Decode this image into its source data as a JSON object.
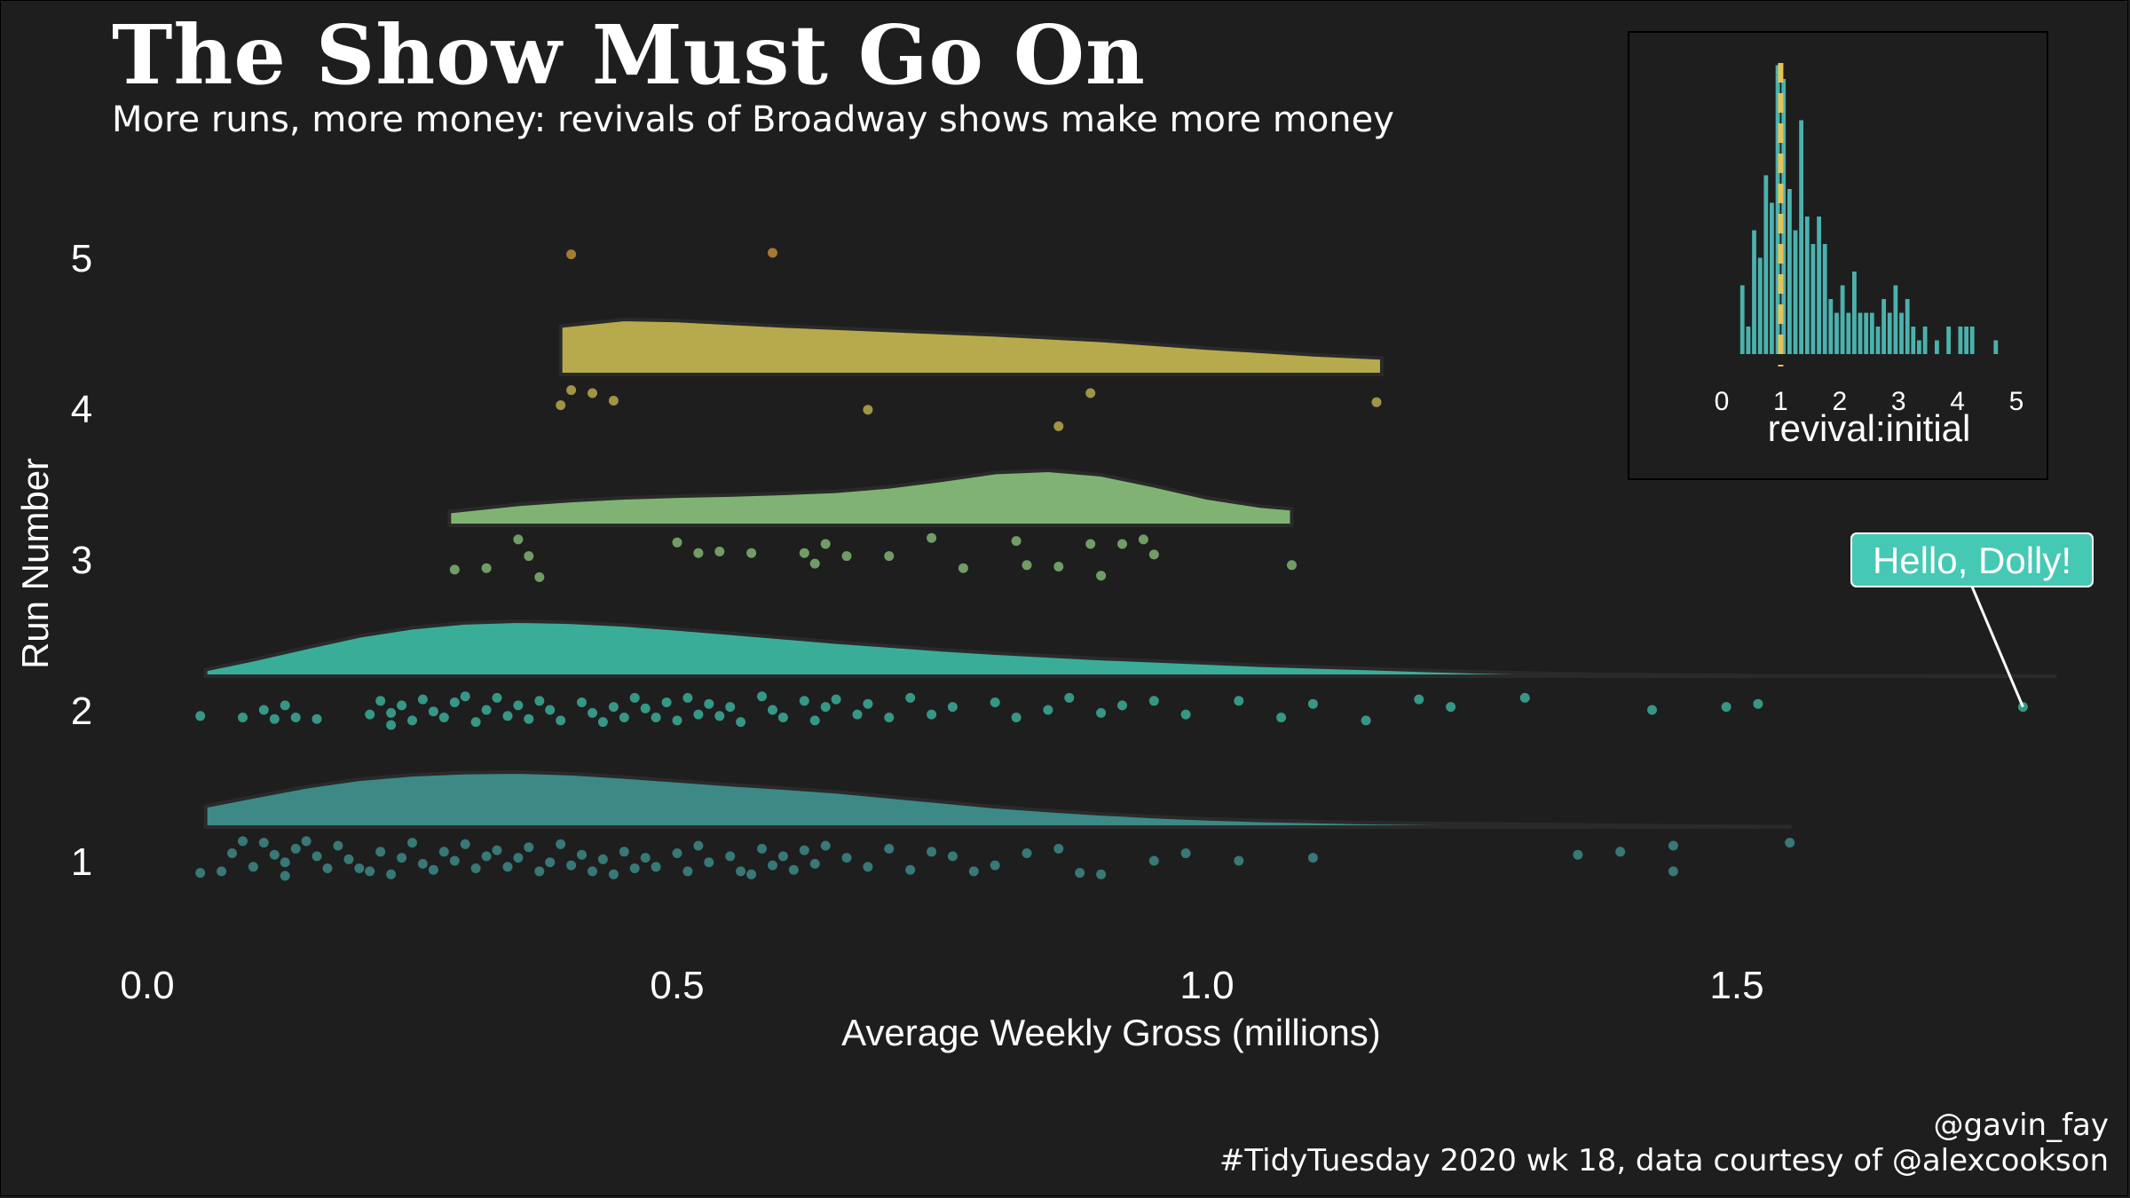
{
  "header": {
    "title": "The Show Must Go On",
    "subtitle": "More runs, more money: revivals of Broadway shows make more money"
  },
  "captions": {
    "handle": "@gavin_fay",
    "source": "#TidyTuesday 2020 wk 18, data courtesy of @alexcookson"
  },
  "colors": {
    "background": "#1e1e1e",
    "run1": "#3f8f8c",
    "run2": "#3cb5a0",
    "run3": "#86bc78",
    "run4": "#c0b24f",
    "run5": "#c8903a",
    "inset_bars": "#4bb1ad",
    "inset_line": "#e3c45a",
    "label_fill": "#45c9b4"
  },
  "chart_data": [
    {
      "type": "raincloud",
      "xlabel": "Average Weekly Gross (millions)",
      "ylabel": "Run Number",
      "xlim": [
        0,
        1.8
      ],
      "xticks": [
        0.0,
        0.5,
        1.0,
        1.5
      ],
      "xtick_labels": [
        "0.0",
        "0.5",
        "1.0",
        "1.5"
      ],
      "ylim": [
        0.5,
        5.5
      ],
      "yticks": [
        1,
        2,
        3,
        4,
        5
      ],
      "grid": false,
      "series": [
        {
          "run": 1,
          "density": {
            "x": [
              0.055,
              0.1,
              0.15,
              0.2,
              0.25,
              0.3,
              0.35,
              0.4,
              0.45,
              0.5,
              0.55,
              0.6,
              0.65,
              0.7,
              0.75,
              0.8,
              0.85,
              0.9,
              0.95,
              1.0,
              1.05,
              1.1,
              1.15,
              1.2,
              1.25,
              1.3,
              1.35,
              1.4,
              1.45,
              1.5,
              1.55
            ],
            "y": [
              0.38,
              0.55,
              0.73,
              0.87,
              0.95,
              0.99,
              1.0,
              0.97,
              0.91,
              0.84,
              0.77,
              0.71,
              0.64,
              0.55,
              0.46,
              0.37,
              0.3,
              0.24,
              0.19,
              0.15,
              0.12,
              0.1,
              0.08,
              0.07,
              0.06,
              0.05,
              0.04,
              0.03,
              0.02,
              0.015,
              0.01
            ]
          },
          "points": [
            [
              0.05,
              0.92
            ],
            [
              0.07,
              0.93
            ],
            [
              0.08,
              1.05
            ],
            [
              0.09,
              1.13
            ],
            [
              0.1,
              0.96
            ],
            [
              0.11,
              1.12
            ],
            [
              0.12,
              1.04
            ],
            [
              0.13,
              0.99
            ],
            [
              0.13,
              0.9
            ],
            [
              0.14,
              1.08
            ],
            [
              0.15,
              1.13
            ],
            [
              0.16,
              1.03
            ],
            [
              0.17,
              0.95
            ],
            [
              0.18,
              1.1
            ],
            [
              0.19,
              1.01
            ],
            [
              0.2,
              0.95
            ],
            [
              0.21,
              0.93
            ],
            [
              0.22,
              1.06
            ],
            [
              0.23,
              0.91
            ],
            [
              0.24,
              1.02
            ],
            [
              0.25,
              1.12
            ],
            [
              0.26,
              0.98
            ],
            [
              0.27,
              0.94
            ],
            [
              0.28,
              1.06
            ],
            [
              0.29,
              1.0
            ],
            [
              0.3,
              1.11
            ],
            [
              0.31,
              0.95
            ],
            [
              0.32,
              1.03
            ],
            [
              0.33,
              1.07
            ],
            [
              0.34,
              0.96
            ],
            [
              0.35,
              1.02
            ],
            [
              0.36,
              1.09
            ],
            [
              0.37,
              0.93
            ],
            [
              0.38,
              0.99
            ],
            [
              0.39,
              1.11
            ],
            [
              0.4,
              0.97
            ],
            [
              0.41,
              1.04
            ],
            [
              0.42,
              0.93
            ],
            [
              0.43,
              1.01
            ],
            [
              0.44,
              0.91
            ],
            [
              0.45,
              1.06
            ],
            [
              0.46,
              0.95
            ],
            [
              0.47,
              1.02
            ],
            [
              0.48,
              0.96
            ],
            [
              0.5,
              1.05
            ],
            [
              0.51,
              0.93
            ],
            [
              0.52,
              1.1
            ],
            [
              0.53,
              0.99
            ],
            [
              0.55,
              1.03
            ],
            [
              0.56,
              0.93
            ],
            [
              0.57,
              0.91
            ],
            [
              0.58,
              1.08
            ],
            [
              0.59,
              0.97
            ],
            [
              0.6,
              1.03
            ],
            [
              0.61,
              0.94
            ],
            [
              0.62,
              1.07
            ],
            [
              0.63,
              0.98
            ],
            [
              0.64,
              1.1
            ],
            [
              0.66,
              1.02
            ],
            [
              0.68,
              0.96
            ],
            [
              0.7,
              1.08
            ],
            [
              0.72,
              0.94
            ],
            [
              0.74,
              1.06
            ],
            [
              0.76,
              1.03
            ],
            [
              0.78,
              0.93
            ],
            [
              0.8,
              0.97
            ],
            [
              0.83,
              1.05
            ],
            [
              0.86,
              1.08
            ],
            [
              0.88,
              0.92
            ],
            [
              0.9,
              0.91
            ],
            [
              0.95,
              1.0
            ],
            [
              0.98,
              1.05
            ],
            [
              1.03,
              1.0
            ],
            [
              1.1,
              1.02
            ],
            [
              1.35,
              1.04
            ],
            [
              1.39,
              1.06
            ],
            [
              1.44,
              0.93
            ],
            [
              1.44,
              1.1
            ],
            [
              1.55,
              1.12
            ]
          ]
        },
        {
          "run": 2,
          "density": {
            "x": [
              0.055,
              0.1,
              0.15,
              0.2,
              0.25,
              0.3,
              0.35,
              0.4,
              0.45,
              0.5,
              0.55,
              0.6,
              0.65,
              0.7,
              0.75,
              0.8,
              0.85,
              0.9,
              0.95,
              1.0,
              1.05,
              1.1,
              1.15,
              1.2,
              1.25,
              1.3,
              1.35,
              1.4,
              1.45,
              1.5,
              1.55,
              1.6,
              1.65,
              1.7,
              1.75,
              1.8
            ],
            "y": [
              0.12,
              0.3,
              0.52,
              0.73,
              0.88,
              0.97,
              1.0,
              0.98,
              0.93,
              0.86,
              0.78,
              0.7,
              0.62,
              0.55,
              0.48,
              0.42,
              0.37,
              0.32,
              0.28,
              0.24,
              0.2,
              0.17,
              0.14,
              0.11,
              0.08,
              0.06,
              0.04,
              0.03,
              0.02,
              0.015,
              0.01,
              0.008,
              0.006,
              0.004,
              0.003,
              0.002
            ]
          },
          "points": [
            [
              0.05,
              1.96
            ],
            [
              0.09,
              1.95
            ],
            [
              0.11,
              2.0
            ],
            [
              0.12,
              1.94
            ],
            [
              0.13,
              2.03
            ],
            [
              0.14,
              1.95
            ],
            [
              0.16,
              1.94
            ],
            [
              0.21,
              1.97
            ],
            [
              0.22,
              2.06
            ],
            [
              0.23,
              1.98
            ],
            [
              0.23,
              1.9
            ],
            [
              0.24,
              2.03
            ],
            [
              0.25,
              1.93
            ],
            [
              0.26,
              2.07
            ],
            [
              0.27,
              1.99
            ],
            [
              0.28,
              1.95
            ],
            [
              0.29,
              2.05
            ],
            [
              0.3,
              2.09
            ],
            [
              0.31,
              1.92
            ],
            [
              0.32,
              2.0
            ],
            [
              0.33,
              2.08
            ],
            [
              0.34,
              1.96
            ],
            [
              0.35,
              2.03
            ],
            [
              0.36,
              1.94
            ],
            [
              0.37,
              2.06
            ],
            [
              0.38,
              2.0
            ],
            [
              0.39,
              1.93
            ],
            [
              0.41,
              2.05
            ],
            [
              0.42,
              1.98
            ],
            [
              0.43,
              1.92
            ],
            [
              0.44,
              2.02
            ],
            [
              0.45,
              1.95
            ],
            [
              0.46,
              2.08
            ],
            [
              0.47,
              2.01
            ],
            [
              0.48,
              1.95
            ],
            [
              0.49,
              2.05
            ],
            [
              0.5,
              1.93
            ],
            [
              0.51,
              2.08
            ],
            [
              0.52,
              1.97
            ],
            [
              0.53,
              2.04
            ],
            [
              0.54,
              1.96
            ],
            [
              0.55,
              2.02
            ],
            [
              0.56,
              1.92
            ],
            [
              0.58,
              2.09
            ],
            [
              0.59,
              2.0
            ],
            [
              0.6,
              1.95
            ],
            [
              0.62,
              2.06
            ],
            [
              0.63,
              1.93
            ],
            [
              0.64,
              2.02
            ],
            [
              0.65,
              2.07
            ],
            [
              0.67,
              1.97
            ],
            [
              0.68,
              2.04
            ],
            [
              0.7,
              1.95
            ],
            [
              0.72,
              2.08
            ],
            [
              0.74,
              1.97
            ],
            [
              0.76,
              2.02
            ],
            [
              0.8,
              2.05
            ],
            [
              0.82,
              1.95
            ],
            [
              0.85,
              2.0
            ],
            [
              0.87,
              2.08
            ],
            [
              0.9,
              1.98
            ],
            [
              0.92,
              2.03
            ],
            [
              0.95,
              2.06
            ],
            [
              0.98,
              1.97
            ],
            [
              1.03,
              2.06
            ],
            [
              1.07,
              1.95
            ],
            [
              1.1,
              2.04
            ],
            [
              1.15,
              1.93
            ],
            [
              1.2,
              2.07
            ],
            [
              1.23,
              2.02
            ],
            [
              1.3,
              2.08
            ],
            [
              1.42,
              2.0
            ],
            [
              1.49,
              2.02
            ],
            [
              1.52,
              2.04
            ],
            [
              1.77,
              2.02
            ]
          ]
        },
        {
          "run": 3,
          "density": {
            "x": [
              0.285,
              0.35,
              0.4,
              0.45,
              0.5,
              0.55,
              0.6,
              0.65,
              0.7,
              0.75,
              0.8,
              0.85,
              0.9,
              0.95,
              1.0,
              1.05,
              1.08
            ],
            "y": [
              0.25,
              0.38,
              0.45,
              0.5,
              0.53,
              0.55,
              0.58,
              0.62,
              0.7,
              0.82,
              0.96,
              1.0,
              0.92,
              0.72,
              0.5,
              0.35,
              0.3
            ]
          },
          "points": [
            [
              0.29,
              2.93
            ],
            [
              0.32,
              2.94
            ],
            [
              0.35,
              3.13
            ],
            [
              0.36,
              3.02
            ],
            [
              0.37,
              2.88
            ],
            [
              0.5,
              3.11
            ],
            [
              0.52,
              3.04
            ],
            [
              0.54,
              3.05
            ],
            [
              0.57,
              3.04
            ],
            [
              0.62,
              3.04
            ],
            [
              0.63,
              2.97
            ],
            [
              0.64,
              3.1
            ],
            [
              0.66,
              3.02
            ],
            [
              0.7,
              3.02
            ],
            [
              0.74,
              3.14
            ],
            [
              0.77,
              2.94
            ],
            [
              0.82,
              3.12
            ],
            [
              0.83,
              2.96
            ],
            [
              0.86,
              2.95
            ],
            [
              0.89,
              3.1
            ],
            [
              0.9,
              2.89
            ],
            [
              0.92,
              3.1
            ],
            [
              0.94,
              3.13
            ],
            [
              0.95,
              3.03
            ],
            [
              1.08,
              2.96
            ]
          ]
        },
        {
          "run": 4,
          "density": {
            "x": [
              0.39,
              0.45,
              0.5,
              0.6,
              0.7,
              0.8,
              0.9,
              1.0,
              1.1,
              1.165
            ],
            "y": [
              0.88,
              1.0,
              0.98,
              0.88,
              0.8,
              0.72,
              0.62,
              0.48,
              0.36,
              0.3
            ]
          },
          "points": [
            [
              0.39,
              4.02
            ],
            [
              0.4,
              4.12
            ],
            [
              0.42,
              4.1
            ],
            [
              0.44,
              4.05
            ],
            [
              0.68,
              3.99
            ],
            [
              0.86,
              3.88
            ],
            [
              0.89,
              4.1
            ],
            [
              1.16,
              4.04
            ]
          ]
        },
        {
          "run": 5,
          "points": [
            [
              0.4,
              5.02
            ],
            [
              0.59,
              5.03
            ]
          ]
        }
      ],
      "annotation": {
        "label": "Hello, Dolly!",
        "point": [
          1.77,
          2.02
        ]
      }
    },
    {
      "type": "bar",
      "xlabel": "revival:initial",
      "xlim": [
        0,
        5
      ],
      "xticks": [
        0,
        1,
        2,
        3,
        4,
        5
      ],
      "xtick_labels": [
        "0",
        "1",
        "2",
        "3",
        "4",
        "5"
      ],
      "bin_width": 0.1,
      "bin_centers": [
        0.35,
        0.45,
        0.55,
        0.65,
        0.75,
        0.85,
        0.95,
        1.05,
        1.15,
        1.25,
        1.35,
        1.45,
        1.55,
        1.65,
        1.75,
        1.85,
        1.95,
        2.05,
        2.15,
        2.25,
        2.35,
        2.45,
        2.55,
        2.65,
        2.75,
        2.85,
        2.95,
        3.05,
        3.15,
        3.25,
        3.35,
        3.45,
        3.55,
        3.65,
        3.75,
        3.85,
        3.95,
        4.05,
        4.15,
        4.25,
        4.35,
        4.45,
        4.55,
        4.65
      ],
      "counts": [
        5,
        2,
        9,
        7,
        13,
        11,
        21,
        20,
        12,
        9,
        17,
        10,
        8,
        10,
        8,
        4,
        3,
        5,
        3,
        6,
        3,
        3,
        3,
        2,
        4,
        3,
        5,
        3,
        4,
        2,
        1,
        2,
        0,
        1,
        0,
        2,
        0,
        2,
        2,
        2,
        0,
        0,
        0,
        1
      ],
      "reference_line": 1
    }
  ]
}
